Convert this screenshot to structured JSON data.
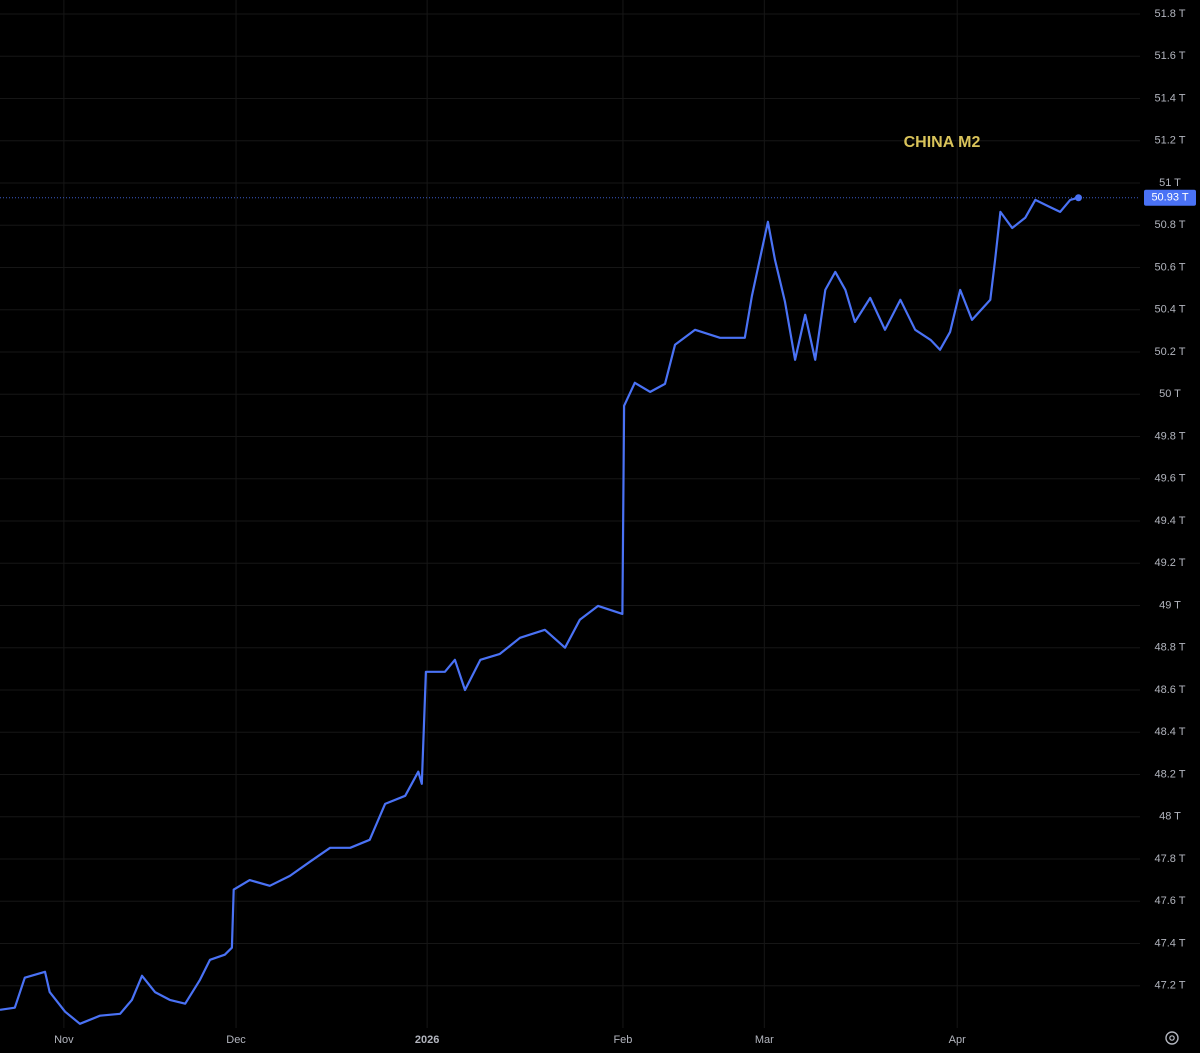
{
  "chart_data": {
    "type": "line",
    "series": [
      {
        "name": "CHINA M2",
        "color": "#4a72f5",
        "x": [
          -10.8,
          -8.3,
          -6.6,
          -3.2,
          -2.4,
          0.2,
          2.7,
          6.1,
          9.5,
          11.5,
          13.2,
          15.4,
          17.9,
          20.5,
          23.0,
          24.7,
          27.2,
          28.4,
          28.7,
          31.4,
          34.8,
          38.2,
          41.6,
          45.0,
          48.4,
          51.7,
          54.3,
          57.7,
          59.9,
          60.5,
          61.2,
          64.4,
          66.1,
          67.8,
          70.4,
          73.7,
          77.1,
          81.3,
          84.7,
          87.2,
          90.3,
          94.4,
          94.7,
          96.5,
          99.1,
          101.6,
          103.3,
          106.7,
          110.9,
          115.1,
          116.3,
          119.0,
          120.2,
          121.9,
          123.6,
          125.3,
          127.0,
          128.7,
          130.4,
          132.1,
          133.7,
          136.3,
          138.8,
          141.4,
          143.9,
          146.5,
          148.1,
          149.8,
          151.5,
          153.5,
          156.6,
          157.4,
          158.3,
          160.3,
          162.5,
          164.2,
          166.4,
          168.4,
          170.1,
          171.5
        ],
        "values": [
          47.086,
          47.096,
          47.238,
          47.266,
          47.17,
          47.077,
          47.02,
          47.058,
          47.067,
          47.133,
          47.247,
          47.17,
          47.133,
          47.115,
          47.228,
          47.323,
          47.347,
          47.38,
          47.655,
          47.7,
          47.673,
          47.72,
          47.787,
          47.853,
          47.853,
          47.891,
          48.061,
          48.099,
          48.213,
          48.156,
          48.686,
          48.686,
          48.743,
          48.6,
          48.743,
          48.771,
          48.847,
          48.885,
          48.8,
          48.932,
          48.998,
          48.96,
          49.945,
          50.054,
          50.011,
          50.049,
          50.234,
          50.305,
          50.267,
          50.267,
          50.465,
          50.816,
          50.636,
          50.437,
          50.163,
          50.376,
          50.163,
          50.494,
          50.579,
          50.494,
          50.342,
          50.456,
          50.305,
          50.447,
          50.305,
          50.257,
          50.21,
          50.295,
          50.494,
          50.352,
          50.447,
          50.636,
          50.863,
          50.787,
          50.835,
          50.92,
          50.89,
          50.863,
          50.92,
          50.93
        ]
      }
    ],
    "last_value": {
      "value": 50.93,
      "label": "50.93 T"
    },
    "xlim": [
      -10.8,
      181.9
    ],
    "xticks": [
      {
        "value": 0,
        "label": "Nov"
      },
      {
        "value": 29.1,
        "label": "Dec"
      },
      {
        "value": 61.4,
        "label": "2026"
      },
      {
        "value": 94.5,
        "label": "Feb"
      },
      {
        "value": 118.4,
        "label": "Mar"
      },
      {
        "value": 151,
        "label": "Apr"
      }
    ],
    "ylim": [
      47.0,
      51.866
    ],
    "yticks": [
      {
        "value": 47.2,
        "label": "47.2 T"
      },
      {
        "value": 47.4,
        "label": "47.4 T"
      },
      {
        "value": 47.6,
        "label": "47.6 T"
      },
      {
        "value": 47.8,
        "label": "47.8 T"
      },
      {
        "value": 48,
        "label": "48 T"
      },
      {
        "value": 48.2,
        "label": "48.2 T"
      },
      {
        "value": 48.4,
        "label": "48.4 T"
      },
      {
        "value": 48.6,
        "label": "48.6 T"
      },
      {
        "value": 48.8,
        "label": "48.8 T"
      },
      {
        "value": 49,
        "label": "49 T"
      },
      {
        "value": 49.2,
        "label": "49.2 T"
      },
      {
        "value": 49.4,
        "label": "49.4 T"
      },
      {
        "value": 49.6,
        "label": "49.6 T"
      },
      {
        "value": 49.8,
        "label": "49.8 T"
      },
      {
        "value": 50,
        "label": "50 T"
      },
      {
        "value": 50.2,
        "label": "50.2 T"
      },
      {
        "value": 50.4,
        "label": "50.4 T"
      },
      {
        "value": 50.6,
        "label": "50.6 T"
      },
      {
        "value": 50.8,
        "label": "50.8 T"
      },
      {
        "value": 51,
        "label": "51 T"
      },
      {
        "value": 51.2,
        "label": "51.2 T"
      },
      {
        "value": 51.4,
        "label": "51.4 T"
      },
      {
        "value": 51.6,
        "label": "51.6 T"
      },
      {
        "value": 51.8,
        "label": "51.8 T"
      }
    ],
    "grid": true
  }
}
